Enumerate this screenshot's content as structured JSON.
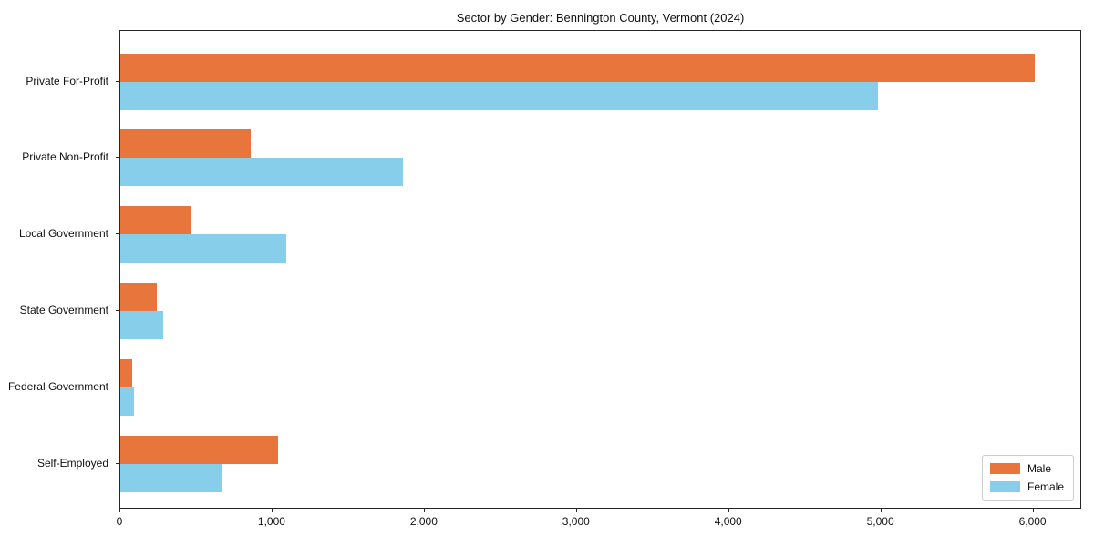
{
  "title": "Sector by Gender: Bennington County, Vermont (2024)",
  "colors": {
    "male": "#e8763c",
    "female": "#87ceeb",
    "axis": "#262626",
    "text": "#111111",
    "legend_border": "#cccccc",
    "background": "#ffffff"
  },
  "legend": {
    "position": "lower right",
    "items": [
      {
        "label": "Male",
        "color": "#e8763c"
      },
      {
        "label": "Female",
        "color": "#87ceeb"
      }
    ]
  },
  "chart_data": {
    "type": "bar",
    "orientation": "horizontal",
    "title": "Sector by Gender: Bennington County, Vermont (2024)",
    "xlabel": "",
    "ylabel": "",
    "grid": false,
    "legend_position": "lower right",
    "categories": [
      "Private For-Profit",
      "Private Non-Profit",
      "Local Government",
      "State Government",
      "Federal Government",
      "Self-Employed"
    ],
    "series": [
      {
        "name": "Male",
        "color": "#e8763c",
        "values": [
          6020,
          860,
          470,
          240,
          80,
          1040
        ]
      },
      {
        "name": "Female",
        "color": "#87ceeb",
        "values": [
          4990,
          1860,
          1090,
          280,
          90,
          670
        ]
      }
    ],
    "xlim": [
      0,
      6320
    ],
    "xticks": [
      0,
      1000,
      2000,
      3000,
      4000,
      5000,
      6000
    ],
    "xtick_labels": [
      "0",
      "1,000",
      "2,000",
      "3,000",
      "4,000",
      "5,000",
      "6,000"
    ]
  }
}
